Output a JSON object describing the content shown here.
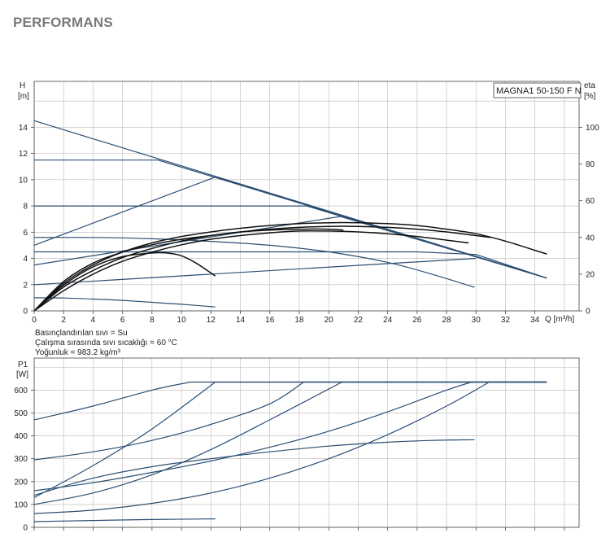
{
  "page": {
    "title": "PERFORMANS"
  },
  "colors": {
    "curve": "#2b4f73",
    "efficiency": "#111111",
    "grid": "#b9b9b9",
    "axis": "#444444"
  },
  "chart_data": [
    {
      "type": "line",
      "title": "",
      "model_label": "MAGNA1 50-150 F N",
      "xlabel": "Q [m³/h]",
      "ylabel": "H\n[m]",
      "y2label": "eta\n[%]",
      "xlim": [
        0,
        37
      ],
      "ylim": [
        0,
        17.5
      ],
      "y2lim": [
        0,
        125
      ],
      "x_ticks": [
        0,
        2,
        4,
        6,
        8,
        10,
        12,
        14,
        16,
        18,
        20,
        22,
        24,
        26,
        28,
        30,
        32,
        34
      ],
      "y_ticks": [
        0,
        2,
        4,
        6,
        8,
        10,
        12,
        14
      ],
      "y2_ticks": [
        0,
        20,
        40,
        60,
        80,
        100
      ],
      "grid": true,
      "notes": [
        "Basınçlandırılan sıvı = Su",
        "Çalışma sırasında sıvı sıcaklığı = 60 °C",
        "Yoğunluk = 983.2 kg/m³"
      ],
      "series": [
        {
          "axis": "H",
          "x": [
            0,
            34.8
          ],
          "y": [
            14.5,
            2.5
          ]
        },
        {
          "axis": "H",
          "x": [
            0,
            8.4,
            34.8
          ],
          "y": [
            11.5,
            11.5,
            2.5
          ]
        },
        {
          "axis": "H",
          "x": [
            0,
            18.5,
            34.8
          ],
          "y": [
            8.0,
            8.0,
            2.5
          ]
        },
        {
          "axis": "H",
          "x": [
            0,
            26,
            30,
            34.8
          ],
          "y": [
            4.5,
            4.5,
            4.3,
            2.5
          ]
        },
        {
          "axis": "H",
          "x": [
            0,
            12.3,
            34.8
          ],
          "y": [
            5.0,
            10.2,
            2.5
          ]
        },
        {
          "axis": "H",
          "x": [
            0,
            20.8,
            34.8
          ],
          "y": [
            3.5,
            7.2,
            2.5
          ]
        },
        {
          "axis": "H",
          "x": [
            0,
            30
          ],
          "y": [
            2.0,
            4.0
          ]
        },
        {
          "axis": "H",
          "x": [
            0,
            4,
            8,
            12,
            16,
            20,
            24,
            27,
            29.9
          ],
          "y": [
            5.6,
            5.6,
            5.5,
            5.3,
            5.0,
            4.5,
            3.7,
            2.8,
            1.8
          ]
        },
        {
          "axis": "H",
          "x": [
            0,
            2,
            4,
            6,
            8,
            10,
            12.3
          ],
          "y": [
            1.0,
            0.98,
            0.9,
            0.8,
            0.65,
            0.5,
            0.3
          ]
        },
        {
          "axis": "eta",
          "x": [
            0,
            2,
            4,
            6,
            8,
            10,
            12,
            14,
            16,
            18,
            20,
            22,
            24,
            26,
            28,
            30,
            32,
            34,
            34.8
          ],
          "y": [
            0,
            15,
            25,
            32,
            37,
            40.5,
            43,
            45,
            46.5,
            47.5,
            48,
            48,
            47.5,
            46.5,
            44.5,
            42,
            38,
            33,
            31
          ]
        },
        {
          "axis": "eta",
          "x": [
            0,
            2,
            4,
            6,
            8,
            10,
            12,
            14,
            16,
            18,
            20,
            22,
            24,
            26,
            28,
            30,
            31
          ],
          "y": [
            0,
            13,
            22,
            29,
            34,
            38,
            41,
            43,
            44.5,
            45.5,
            46,
            46,
            45.5,
            44.5,
            43,
            41,
            40
          ]
        },
        {
          "axis": "eta",
          "x": [
            0,
            2,
            4,
            6,
            8,
            10,
            12,
            14,
            16,
            18,
            20,
            22,
            24,
            26,
            28,
            29.5
          ],
          "y": [
            0,
            11,
            20,
            27,
            32,
            36,
            39,
            41,
            42.5,
            43.5,
            43.5,
            43,
            42,
            40.5,
            38.5,
            37
          ]
        },
        {
          "axis": "eta",
          "x": [
            0,
            2,
            4,
            6,
            8,
            10,
            12,
            14,
            16,
            18,
            20,
            21
          ],
          "y": [
            0,
            16,
            26,
            32,
            36,
            39,
            41,
            43,
            44,
            44.5,
            44.5,
            44
          ]
        },
        {
          "axis": "eta",
          "x": [
            0,
            2,
            4,
            6,
            8,
            9,
            10,
            11,
            12.3
          ],
          "y": [
            0,
            14,
            24,
            29.5,
            31.5,
            31.5,
            30,
            26,
            19
          ]
        }
      ]
    },
    {
      "type": "line",
      "title": "",
      "xlabel": "",
      "ylabel": "P1\n[W]",
      "xlim": [
        0,
        37
      ],
      "ylim": [
        0,
        740
      ],
      "y_ticks": [
        0,
        100,
        200,
        300,
        400,
        500,
        600
      ],
      "grid": true,
      "series": [
        {
          "x": [
            0,
            4,
            8,
            10.6,
            34.8
          ],
          "y": [
            470,
            530,
            600,
            635,
            635
          ]
        },
        {
          "x": [
            0,
            4,
            8,
            12,
            16,
            18.3,
            34.8
          ],
          "y": [
            295,
            330,
            380,
            450,
            540,
            635,
            635
          ]
        },
        {
          "x": [
            0,
            4,
            8,
            12,
            16,
            20,
            24,
            28,
            29.7,
            34.8
          ],
          "y": [
            160,
            195,
            240,
            290,
            350,
            420,
            505,
            600,
            635,
            635
          ]
        },
        {
          "x": [
            0,
            4,
            8,
            12.3,
            34.8
          ],
          "y": [
            130,
            270,
            430,
            635,
            635
          ]
        },
        {
          "x": [
            0,
            4,
            8,
            12,
            16,
            20.9,
            34.8
          ],
          "y": [
            100,
            150,
            230,
            340,
            470,
            635,
            635
          ]
        },
        {
          "x": [
            0,
            4,
            8,
            12,
            16,
            20,
            24,
            28,
            30.9,
            34.8
          ],
          "y": [
            60,
            75,
            105,
            150,
            215,
            300,
            405,
            530,
            635,
            635
          ]
        },
        {
          "x": [
            0,
            4,
            8,
            12,
            16,
            20,
            24,
            27,
            29.9
          ],
          "y": [
            140,
            215,
            265,
            300,
            330,
            355,
            372,
            380,
            383
          ]
        },
        {
          "x": [
            0,
            4,
            8,
            12.3
          ],
          "y": [
            25,
            30,
            34,
            37
          ]
        }
      ]
    }
  ]
}
